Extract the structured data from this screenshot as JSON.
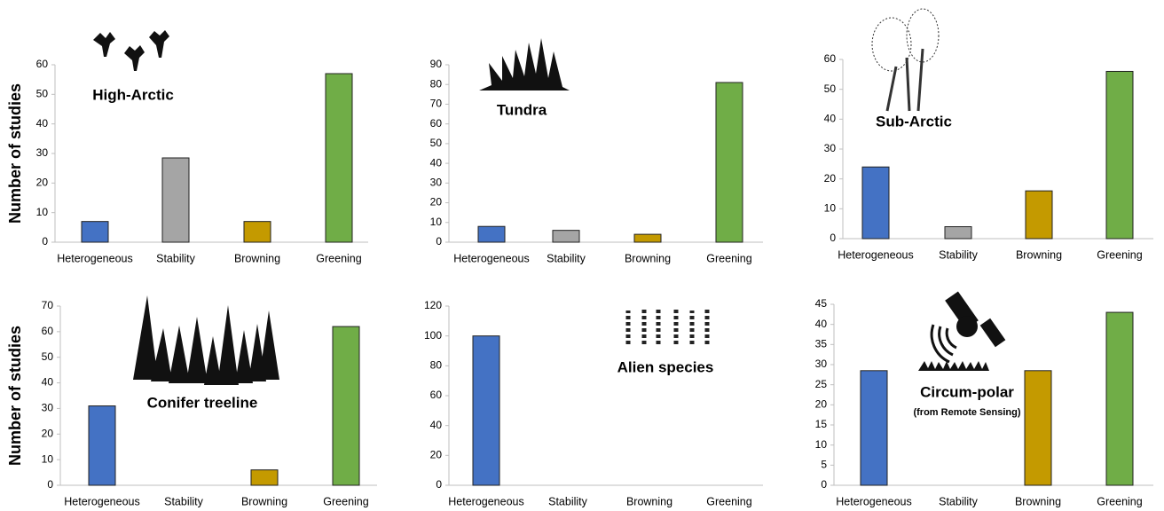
{
  "chart_data": [
    {
      "type": "bar",
      "title": "High-Arctic",
      "ylabel": "Number of studies",
      "categories": [
        "Heterogeneous",
        "Stability",
        "Browning",
        "Greening"
      ],
      "values": [
        7,
        28.5,
        7,
        57
      ],
      "colors": [
        "#4472c4",
        "#a5a5a5",
        "#c49a00",
        "#70ad47"
      ],
      "ylim": [
        0,
        60
      ],
      "yticks": [
        0,
        10,
        20,
        30,
        40,
        50,
        60
      ]
    },
    {
      "type": "bar",
      "title": "Tundra",
      "categories": [
        "Heterogeneous",
        "Stability",
        "Browning",
        "Greening"
      ],
      "values": [
        8,
        6,
        4,
        81
      ],
      "colors": [
        "#4472c4",
        "#a5a5a5",
        "#c49a00",
        "#70ad47"
      ],
      "ylim": [
        0,
        90
      ],
      "yticks": [
        0,
        10,
        20,
        30,
        40,
        50,
        60,
        70,
        80,
        90
      ]
    },
    {
      "type": "bar",
      "title": "Sub-Arctic",
      "categories": [
        "Heterogeneous",
        "Stability",
        "Browning",
        "Greening"
      ],
      "values": [
        24,
        4,
        16,
        56
      ],
      "colors": [
        "#4472c4",
        "#a5a5a5",
        "#c49a00",
        "#70ad47"
      ],
      "ylim": [
        0,
        60
      ],
      "yticks": [
        0,
        10,
        20,
        30,
        40,
        50,
        60
      ]
    },
    {
      "type": "bar",
      "title": "Conifer treeline",
      "ylabel": "Number of studies",
      "categories": [
        "Heterogeneous",
        "Stability",
        "Browning",
        "Greening"
      ],
      "values": [
        31,
        0,
        6,
        62
      ],
      "colors": [
        "#4472c4",
        "#a5a5a5",
        "#c49a00",
        "#70ad47"
      ],
      "ylim": [
        0,
        70
      ],
      "yticks": [
        0,
        10,
        20,
        30,
        40,
        50,
        60,
        70
      ]
    },
    {
      "type": "bar",
      "title": "Alien species",
      "categories": [
        "Heterogeneous",
        "Stability",
        "Browning",
        "Greening"
      ],
      "values": [
        100,
        0,
        0,
        0
      ],
      "colors": [
        "#4472c4",
        "#a5a5a5",
        "#c49a00",
        "#70ad47"
      ],
      "ylim": [
        0,
        120
      ],
      "yticks": [
        0,
        20,
        40,
        60,
        80,
        100,
        120
      ]
    },
    {
      "type": "bar",
      "title": "Circum-polar",
      "subtitle": "(from Remote Sensing)",
      "categories": [
        "Heterogeneous",
        "Stability",
        "Browning",
        "Greening"
      ],
      "values": [
        28.5,
        0,
        28.5,
        43
      ],
      "colors": [
        "#4472c4",
        "#a5a5a5",
        "#c49a00",
        "#70ad47"
      ],
      "ylim": [
        0,
        45
      ],
      "yticks": [
        0,
        5,
        10,
        15,
        20,
        25,
        30,
        35,
        40,
        45
      ]
    }
  ]
}
